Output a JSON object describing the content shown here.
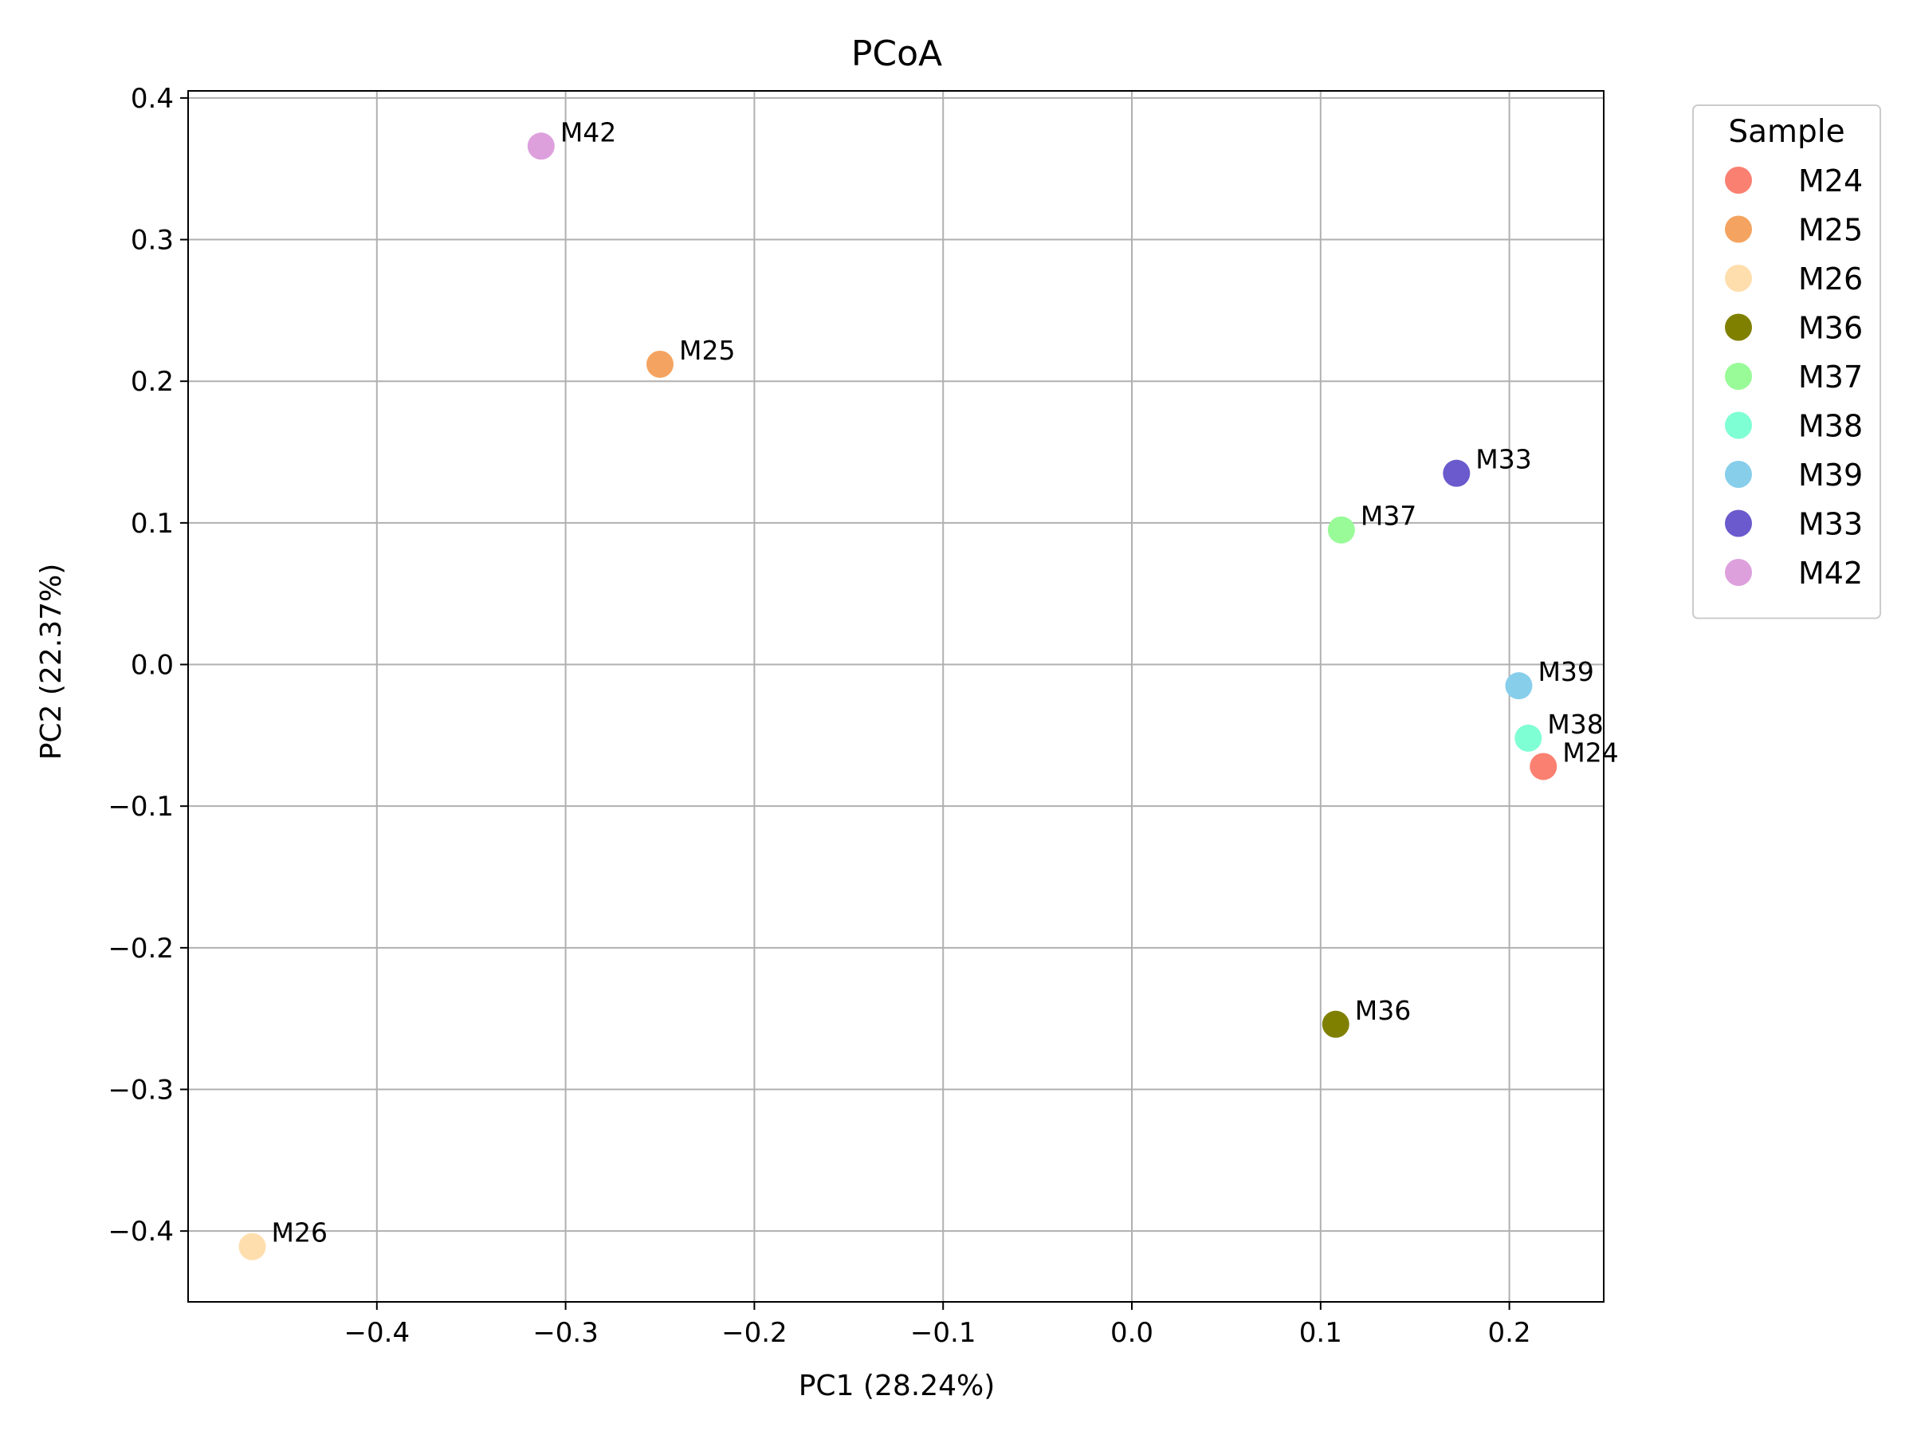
{
  "chart_data": {
    "type": "scatter",
    "title": "PCoA",
    "xlabel": "PC1 (28.24%)",
    "ylabel": "PC2 (22.37%)",
    "xlim": [
      -0.5,
      0.25
    ],
    "ylim": [
      -0.45,
      0.405
    ],
    "xticks": [
      -0.4,
      -0.3,
      -0.2,
      -0.1,
      0.0,
      0.1,
      0.2
    ],
    "yticks": [
      0.4,
      0.3,
      0.2,
      0.1,
      0.0,
      -0.1,
      -0.2,
      -0.3,
      -0.4
    ],
    "xtick_labels": [
      "−0.4",
      "−0.3",
      "−0.2",
      "−0.1",
      "0.0",
      "0.1",
      "0.2"
    ],
    "ytick_labels": [
      "0.4",
      "0.3",
      "0.2",
      "0.1",
      "0.0",
      "−0.1",
      "−0.2",
      "−0.3",
      "−0.4"
    ],
    "grid": true,
    "legend": {
      "title": "Sample",
      "placement": "outside-top-right"
    },
    "points": [
      {
        "name": "M24",
        "x": 0.218,
        "y": -0.072,
        "color": "#FA8072"
      },
      {
        "name": "M25",
        "x": -0.25,
        "y": 0.212,
        "color": "#F4A460"
      },
      {
        "name": "M26",
        "x": -0.466,
        "y": -0.411,
        "color": "#FFDEAD"
      },
      {
        "name": "M36",
        "x": 0.108,
        "y": -0.254,
        "color": "#808000"
      },
      {
        "name": "M37",
        "x": 0.111,
        "y": 0.095,
        "color": "#98FB98"
      },
      {
        "name": "M38",
        "x": 0.21,
        "y": -0.052,
        "color": "#7FFFD4"
      },
      {
        "name": "M39",
        "x": 0.205,
        "y": -0.015,
        "color": "#87CEEB"
      },
      {
        "name": "M33",
        "x": 0.172,
        "y": 0.135,
        "color": "#6A5ACD"
      },
      {
        "name": "M42",
        "x": -0.313,
        "y": 0.366,
        "color": "#DDA0DD"
      }
    ]
  }
}
